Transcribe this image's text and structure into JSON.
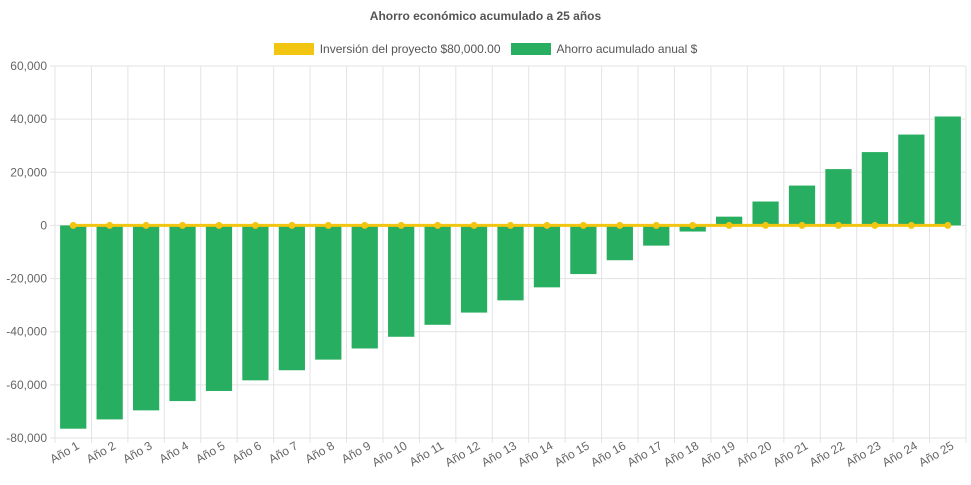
{
  "chart_data": {
    "type": "bar",
    "title": "Ahorro económico acumulado a 25 años",
    "categories": [
      "Año 1",
      "Año 2",
      "Año 3",
      "Año 4",
      "Año 5",
      "Año 6",
      "Año 7",
      "Año 8",
      "Año 9",
      "Año 10",
      "Año 11",
      "Año 12",
      "Año 13",
      "Año 14",
      "Año 15",
      "Año 16",
      "Año 17",
      "Año 18",
      "Año 19",
      "Año 20",
      "Año 21",
      "Año 22",
      "Año 23",
      "Año 24",
      "Año 25"
    ],
    "series": [
      {
        "name": "Inversión del proyecto $80,000.00",
        "type": "line",
        "color": "#f2c511",
        "values": [
          0,
          0,
          0,
          0,
          0,
          0,
          0,
          0,
          0,
          0,
          0,
          0,
          0,
          0,
          0,
          0,
          0,
          0,
          0,
          0,
          0,
          0,
          0,
          0,
          0
        ]
      },
      {
        "name": "Ahorro acumulado anual $",
        "type": "bar",
        "color": "#27ae60",
        "values": [
          -76500,
          -73000,
          -69600,
          -66100,
          -62300,
          -58300,
          -54500,
          -50500,
          -46300,
          -41900,
          -37400,
          -32800,
          -28200,
          -23300,
          -18300,
          -13100,
          -7600,
          -2300,
          3300,
          9000,
          15000,
          21200,
          27600,
          34200,
          41000
        ]
      }
    ],
    "ylim": [
      -80000,
      60000
    ],
    "yticks": [
      "60,000",
      "40,000",
      "20,000",
      "0",
      "-20,000",
      "-40,000",
      "-60,000",
      "-80,000"
    ],
    "ytick_values": [
      60000,
      40000,
      20000,
      0,
      -20000,
      -40000,
      -60000,
      -80000
    ],
    "grid": true,
    "legend_position": "top"
  }
}
